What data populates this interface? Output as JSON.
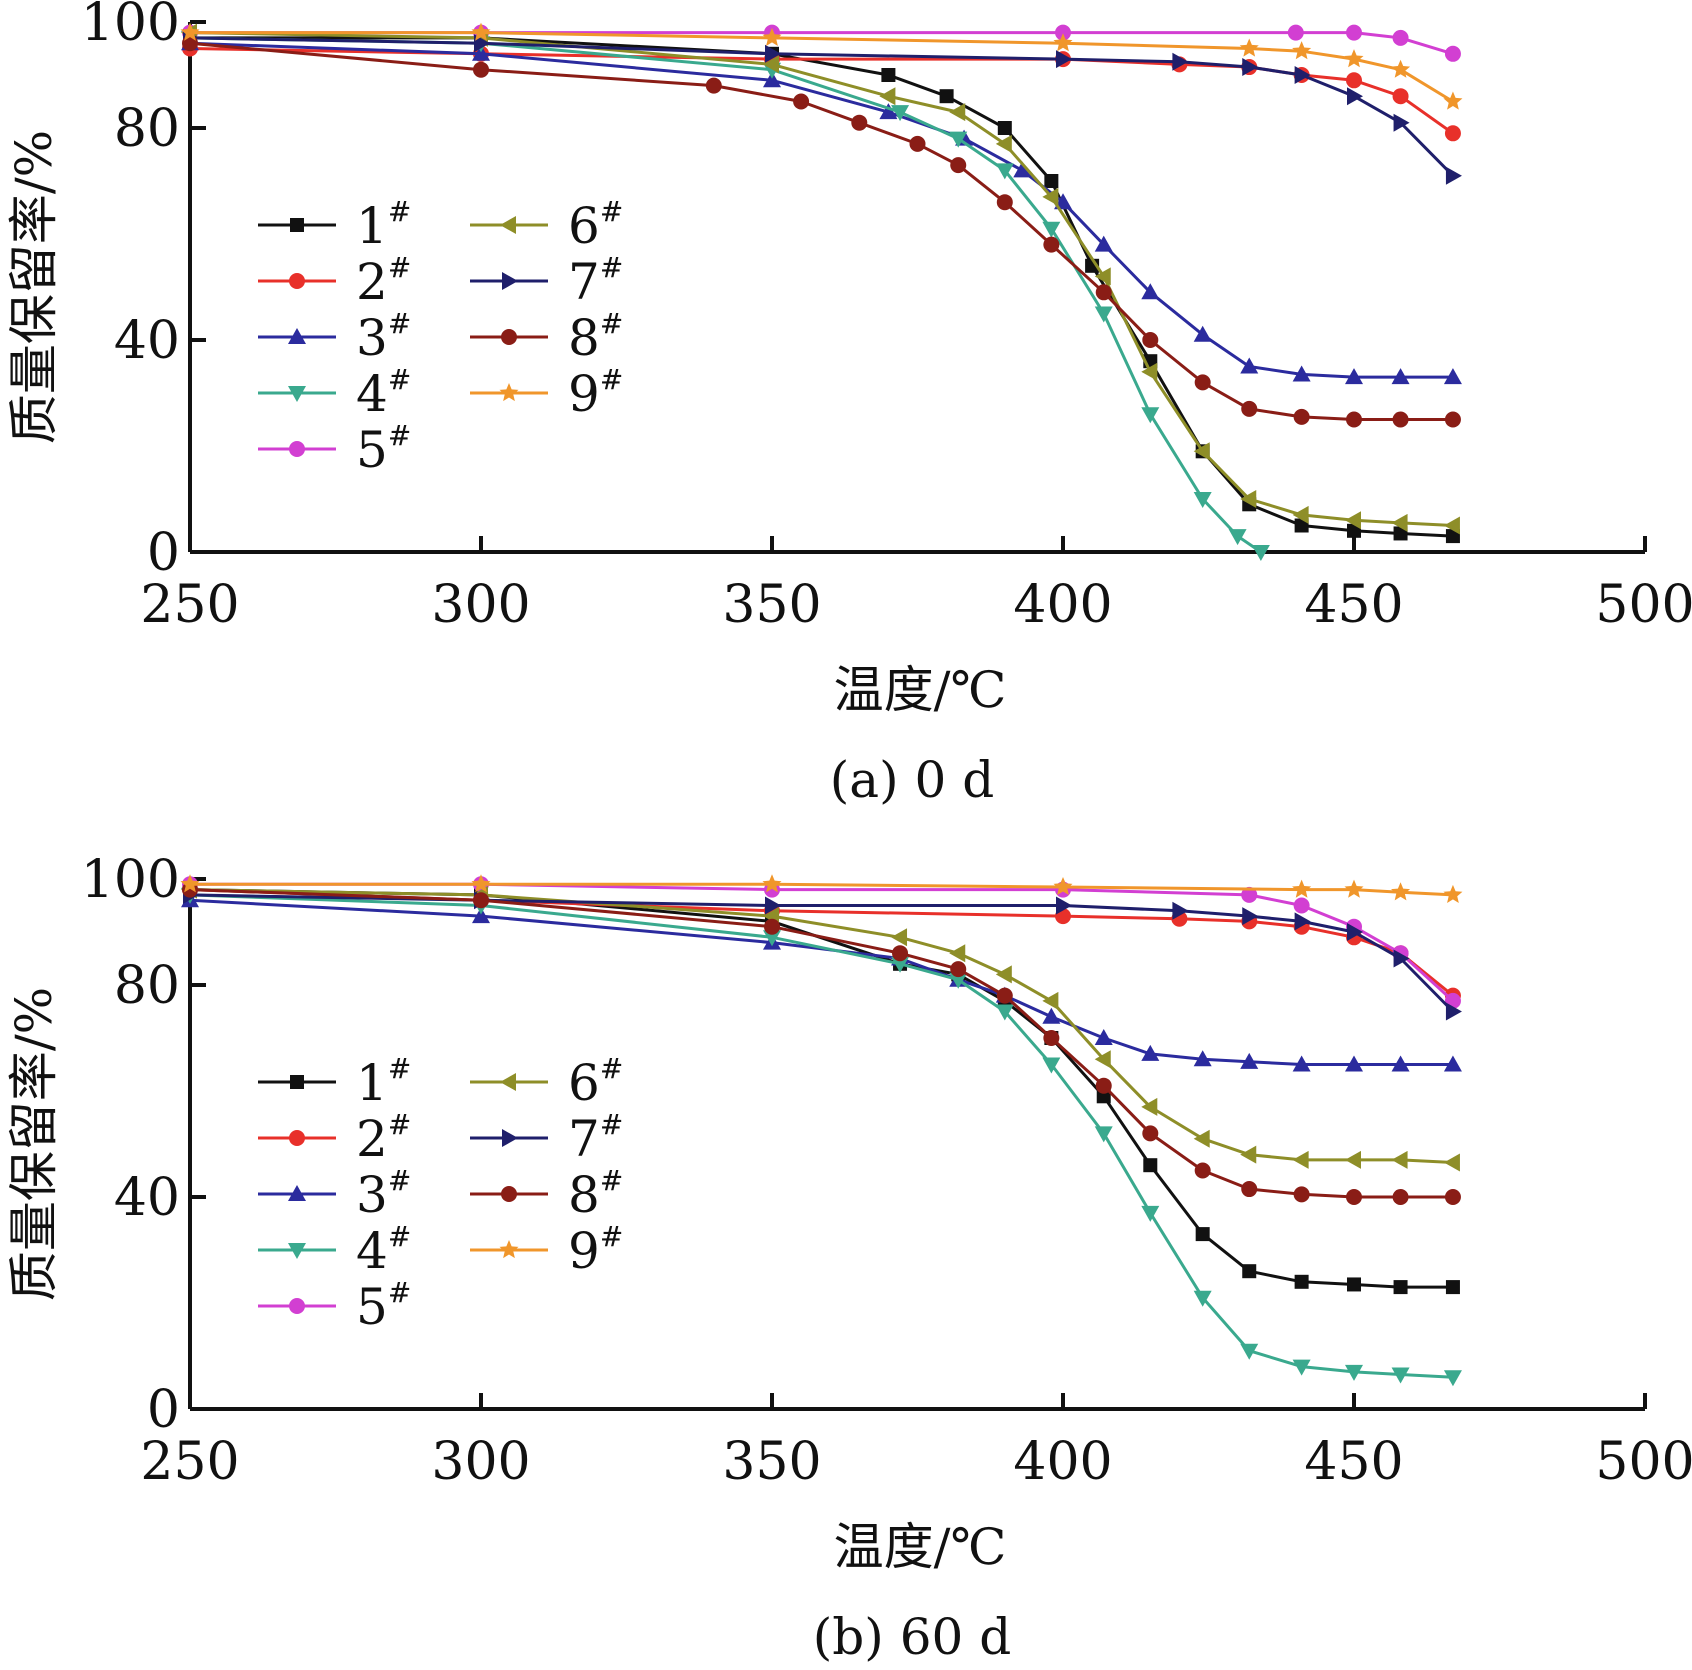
{
  "chart_data": [
    {
      "type": "line",
      "caption": "(a) 0 d",
      "xlabel": "温度/℃",
      "ylabel": "质量保留率/%",
      "xlim": [
        250,
        500
      ],
      "ylim": [
        0,
        100
      ],
      "xticks": [
        250,
        300,
        350,
        400,
        450,
        500
      ],
      "yticks": [
        0,
        40,
        80,
        100
      ],
      "grid": false,
      "legend_position": "left-middle, two columns",
      "series": [
        {
          "name": "1#",
          "color": "#111111",
          "marker": "square",
          "x": [
            250,
            300,
            350,
            370,
            380,
            390,
            398,
            405,
            415,
            424,
            432,
            441,
            450,
            458,
            467
          ],
          "y": [
            97,
            97,
            94,
            90,
            86,
            80,
            70,
            54,
            36,
            19,
            9,
            5,
            4,
            3.5,
            3
          ]
        },
        {
          "name": "2#",
          "color": "#e8302a",
          "marker": "circle",
          "x": [
            250,
            300,
            350,
            400,
            420,
            432,
            441,
            450,
            458,
            467
          ],
          "y": [
            95,
            94,
            93,
            93,
            92,
            91.5,
            90,
            89,
            86,
            79
          ]
        },
        {
          "name": "3#",
          "color": "#2b2b9e",
          "marker": "triangle-up",
          "x": [
            250,
            300,
            350,
            370,
            383,
            393,
            400,
            407,
            415,
            424,
            432,
            441,
            450,
            458,
            467
          ],
          "y": [
            96,
            94,
            89,
            83,
            78,
            72,
            66,
            58,
            49,
            41,
            35,
            33.5,
            33,
            33,
            33
          ]
        },
        {
          "name": "4#",
          "color": "#3aa98e",
          "marker": "triangle-down",
          "x": [
            250,
            300,
            350,
            372,
            382,
            390,
            398,
            407,
            415,
            424,
            430,
            434
          ],
          "y": [
            97,
            96,
            91,
            83,
            78,
            72,
            61,
            45,
            26,
            10,
            3,
            0
          ]
        },
        {
          "name": "5#",
          "color": "#d23fd2",
          "marker": "circle",
          "x": [
            250,
            300,
            350,
            400,
            440,
            450,
            458,
            467
          ],
          "y": [
            98,
            98,
            98,
            98,
            98,
            98,
            97,
            94
          ]
        },
        {
          "name": "6#",
          "color": "#8e8e28",
          "marker": "triangle-left",
          "x": [
            250,
            300,
            350,
            370,
            382,
            390,
            398,
            407,
            415,
            424,
            432,
            441,
            450,
            458,
            467
          ],
          "y": [
            98,
            97,
            92,
            86,
            83,
            77,
            67,
            52,
            34,
            19,
            10,
            7,
            6,
            5.5,
            5
          ]
        },
        {
          "name": "7#",
          "color": "#1f1f6b",
          "marker": "triangle-right",
          "x": [
            250,
            300,
            350,
            400,
            420,
            432,
            441,
            450,
            458,
            467
          ],
          "y": [
            97,
            96,
            94,
            93,
            92.5,
            91.5,
            90,
            86,
            81,
            71
          ]
        },
        {
          "name": "8#",
          "color": "#8a1d16",
          "marker": "circle",
          "x": [
            250,
            300,
            340,
            355,
            365,
            375,
            382,
            390,
            398,
            407,
            415,
            424,
            432,
            441,
            450,
            458,
            467
          ],
          "y": [
            96,
            91,
            88,
            85,
            81,
            77,
            73,
            66,
            58,
            49,
            40,
            32,
            27,
            25.5,
            25,
            25,
            25
          ]
        },
        {
          "name": "9#",
          "color": "#f0962b",
          "marker": "star",
          "x": [
            250,
            300,
            350,
            400,
            432,
            441,
            450,
            458,
            467
          ],
          "y": [
            98,
            98,
            97,
            96,
            95,
            94.5,
            93,
            91,
            85
          ]
        }
      ]
    },
    {
      "type": "line",
      "caption": "(b) 60 d",
      "xlabel": "温度/℃",
      "ylabel": "质量保留率/%",
      "xlim": [
        250,
        500
      ],
      "ylim": [
        0,
        100
      ],
      "xticks": [
        250,
        300,
        350,
        400,
        450,
        500
      ],
      "yticks": [
        0,
        40,
        80,
        100
      ],
      "grid": false,
      "legend_position": "left-middle, two columns",
      "series": [
        {
          "name": "1#",
          "color": "#111111",
          "marker": "square",
          "x": [
            250,
            300,
            350,
            372,
            382,
            390,
            398,
            407,
            415,
            424,
            432,
            441,
            450,
            458,
            467
          ],
          "y": [
            98,
            97,
            92,
            84,
            82,
            77,
            70,
            59,
            46,
            33,
            26,
            24,
            23.5,
            23,
            23
          ]
        },
        {
          "name": "2#",
          "color": "#e8302a",
          "marker": "circle",
          "x": [
            250,
            300,
            350,
            400,
            420,
            432,
            441,
            450,
            458,
            467
          ],
          "y": [
            98,
            96,
            94,
            93,
            92.5,
            92,
            91,
            89,
            86,
            78
          ]
        },
        {
          "name": "3#",
          "color": "#2b2b9e",
          "marker": "triangle-up",
          "x": [
            250,
            300,
            350,
            372,
            382,
            390,
            398,
            407,
            415,
            424,
            432,
            441,
            450,
            458,
            467
          ],
          "y": [
            96,
            93,
            88,
            85,
            81,
            78,
            74,
            70,
            67,
            66,
            65.5,
            65,
            65,
            65,
            65
          ]
        },
        {
          "name": "4#",
          "color": "#3aa98e",
          "marker": "triangle-down",
          "x": [
            250,
            300,
            350,
            372,
            382,
            390,
            398,
            407,
            415,
            424,
            432,
            441,
            450,
            458,
            467
          ],
          "y": [
            97,
            95,
            89,
            84,
            81,
            75,
            65,
            52,
            37,
            21,
            11,
            8,
            7,
            6.5,
            6
          ]
        },
        {
          "name": "5#",
          "color": "#d23fd2",
          "marker": "circle",
          "x": [
            250,
            300,
            350,
            400,
            432,
            441,
            450,
            458,
            467
          ],
          "y": [
            99,
            99,
            98,
            98,
            97,
            95,
            91,
            86,
            77
          ]
        },
        {
          "name": "6#",
          "color": "#8e8e28",
          "marker": "triangle-left",
          "x": [
            250,
            300,
            350,
            372,
            382,
            390,
            398,
            407,
            415,
            424,
            432,
            441,
            450,
            458,
            467
          ],
          "y": [
            98,
            97,
            93,
            89,
            86,
            82,
            77,
            66,
            57,
            51,
            48,
            47,
            47,
            47,
            46.5
          ]
        },
        {
          "name": "7#",
          "color": "#1f1f6b",
          "marker": "triangle-right",
          "x": [
            250,
            300,
            350,
            400,
            420,
            432,
            441,
            450,
            458,
            467
          ],
          "y": [
            97,
            96,
            95,
            95,
            94,
            93,
            92,
            90,
            85,
            75
          ]
        },
        {
          "name": "8#",
          "color": "#8a1d16",
          "marker": "circle",
          "x": [
            250,
            300,
            350,
            372,
            382,
            390,
            398,
            407,
            415,
            424,
            432,
            441,
            450,
            458,
            467
          ],
          "y": [
            98,
            96,
            91,
            86,
            83,
            78,
            70,
            61,
            52,
            45,
            41.5,
            40.5,
            40,
            40,
            40
          ]
        },
        {
          "name": "9#",
          "color": "#f0962b",
          "marker": "star",
          "x": [
            250,
            300,
            350,
            400,
            441,
            450,
            458,
            467
          ],
          "y": [
            99,
            99,
            99,
            98.5,
            98,
            98,
            97.5,
            97
          ]
        }
      ]
    }
  ]
}
